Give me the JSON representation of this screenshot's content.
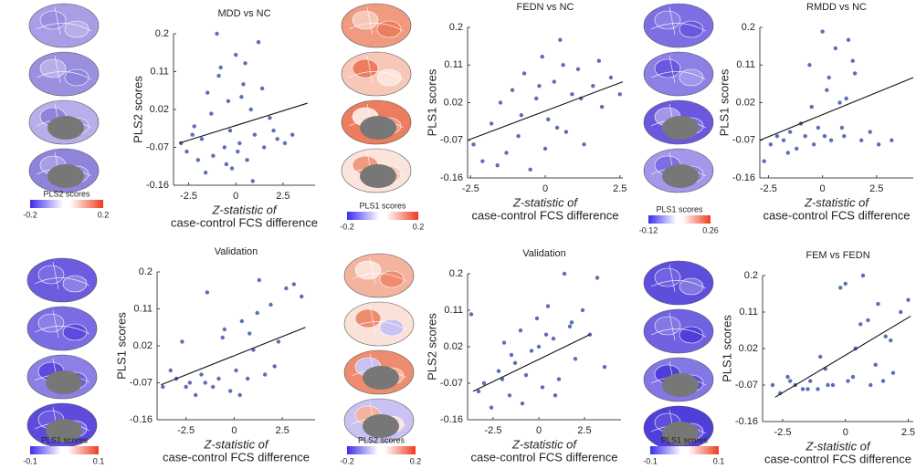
{
  "chart_data": [
    {
      "type": "scatter",
      "title": "MDD vs NC",
      "ylabel": "PLS2 scores",
      "xlabel": [
        "Z-statistic of",
        "case-control FCS difference"
      ],
      "color": "#5b6fb5",
      "xlim": [
        -3.3,
        4.2
      ],
      "xticks": [
        -2.5,
        0,
        2.5
      ],
      "ylim": [
        -0.16,
        0.2
      ],
      "yticks": [
        -0.16,
        -0.07,
        0.02,
        0.11,
        0.2
      ],
      "x": [
        -2.9,
        -2.6,
        -2.3,
        -2,
        -1.8,
        -1.5,
        -1.2,
        -1,
        -0.8,
        -0.6,
        -0.4,
        -0.2,
        0,
        0.2,
        0.4,
        0.6,
        0.8,
        1,
        1.2,
        1.5,
        1.8,
        2.2,
        2.6,
        3,
        -1.6,
        -0.9,
        -0.3,
        0.3,
        0.9,
        -2.2,
        -1.3,
        0.1,
        1.4,
        -0.5,
        0.5,
        2
      ],
      "y": [
        -0.06,
        -0.08,
        -0.04,
        -0.1,
        -0.05,
        0.06,
        -0.09,
        0.2,
        0.12,
        -0.07,
        0.04,
        -0.12,
        0.15,
        -0.06,
        0.08,
        -0.1,
        0.02,
        -0.04,
        0.18,
        -0.07,
        0,
        -0.05,
        -0.06,
        -0.04,
        -0.13,
        0.1,
        -0.03,
        0.05,
        -0.15,
        -0.02,
        0.01,
        -0.08,
        0.07,
        -0.11,
        0.13,
        -0.03
      ],
      "fit": {
        "x": [
          -3,
          3.8
        ],
        "y": [
          -0.06,
          0.035
        ]
      },
      "colorbar": {
        "label": "PLS2 scores",
        "ticks": [
          -0.2,
          0.2
        ]
      }
    },
    {
      "type": "scatter",
      "title": "FEDN vs NC",
      "ylabel": "PLS1 scores",
      "xlabel": [
        "Z-statistic of",
        "case-control FCS difference"
      ],
      "color": "#5b6fb5",
      "xlim": [
        -2.6,
        2.6
      ],
      "xticks": [
        -2.5,
        0,
        2.5
      ],
      "ylim": [
        -0.16,
        0.2
      ],
      "yticks": [
        -0.16,
        -0.07,
        0.02,
        0.11,
        0.2
      ],
      "x": [
        -2.4,
        -2.1,
        -1.8,
        -1.5,
        -1.3,
        -1.1,
        -0.9,
        -0.7,
        -0.5,
        -0.3,
        -0.1,
        0.1,
        0.3,
        0.5,
        0.7,
        0.9,
        1.1,
        1.3,
        1.6,
        1.9,
        2.2,
        2.5,
        -1.6,
        -0.8,
        0,
        0.6,
        1.2,
        -0.2,
        0.4,
        1.8
      ],
      "y": [
        -0.08,
        -0.12,
        -0.03,
        0.02,
        -0.1,
        0.05,
        -0.06,
        0.09,
        -0.14,
        0.03,
        0.13,
        -0.02,
        0.07,
        0.17,
        -0.05,
        0.04,
        0.1,
        -0.08,
        0.06,
        0.01,
        0.08,
        0.04,
        -0.13,
        -0.01,
        -0.09,
        0.11,
        0.03,
        0.06,
        -0.04,
        0.12
      ],
      "fit": {
        "x": [
          -2.6,
          2.6
        ],
        "y": [
          -0.07,
          0.07
        ]
      },
      "colorbar": {
        "label": "PLS1 scores",
        "ticks": [
          -0.2,
          0.2
        ]
      }
    },
    {
      "type": "scatter",
      "title": "RMDD vs NC",
      "ylabel": "PLS1 scores",
      "xlabel": [
        "Z-statistic of",
        "case-control FCS difference"
      ],
      "color": "#5b6fb5",
      "xlim": [
        -2.9,
        4.2
      ],
      "xticks": [
        -2.5,
        0,
        2.5
      ],
      "ylim": [
        -0.16,
        0.2
      ],
      "yticks": [
        -0.16,
        -0.07,
        0.02,
        0.11,
        0.2
      ],
      "x": [
        -2.7,
        -2.4,
        -2.1,
        -1.8,
        -1.5,
        -1.2,
        -1,
        -0.8,
        -0.6,
        -0.4,
        -0.2,
        0,
        0.2,
        0.4,
        0.6,
        0.8,
        1,
        1.2,
        1.5,
        1.8,
        2.2,
        2.6,
        3.2,
        -0.5,
        0.3,
        0.9,
        1.4,
        -1.6,
        0.1,
        1.1
      ],
      "y": [
        -0.12,
        -0.08,
        -0.06,
        -0.07,
        -0.05,
        -0.09,
        -0.03,
        -0.06,
        0.11,
        -0.08,
        -0.04,
        0.19,
        0.05,
        -0.07,
        0.15,
        0.02,
        -0.06,
        0.17,
        0.09,
        -0.07,
        -0.05,
        -0.08,
        -0.07,
        0.01,
        0.08,
        -0.04,
        0.12,
        -0.1,
        -0.06,
        0.03
      ],
      "fit": {
        "x": [
          -2.9,
          4.2
        ],
        "y": [
          -0.07,
          0.08
        ]
      },
      "colorbar": {
        "label": "PLS1 scores",
        "ticks": [
          -0.12,
          0.26
        ]
      }
    },
    {
      "type": "scatter",
      "title": "Validation",
      "ylabel": "PLS1 scores",
      "xlabel": [
        "Z-statistic of",
        "case-control FCS difference"
      ],
      "color": "#5b6fb5",
      "xlim": [
        -4,
        4.2
      ],
      "xticks": [
        -2.5,
        0,
        2.5
      ],
      "ylim": [
        -0.16,
        0.2
      ],
      "yticks": [
        -0.16,
        -0.07,
        0.02,
        0.11,
        0.2
      ],
      "x": [
        -3.7,
        -3.3,
        -3,
        -2.7,
        -2.3,
        -2,
        -1.7,
        -1.4,
        -1.1,
        -0.8,
        -0.5,
        -0.2,
        0.1,
        0.4,
        0.7,
        1,
        1.3,
        1.6,
        1.9,
        2.3,
        2.7,
        3.1,
        3.5,
        -1.5,
        -0.6,
        0.3,
        1.2,
        2.1,
        -2.5,
        0.8
      ],
      "y": [
        -0.08,
        -0.04,
        -0.06,
        0.03,
        -0.07,
        -0.1,
        -0.05,
        0.15,
        -0.08,
        -0.06,
        0.06,
        -0.09,
        -0.04,
        0.08,
        -0.06,
        0.01,
        0.18,
        -0.05,
        0.12,
        0.03,
        0.16,
        0.17,
        0.14,
        -0.07,
        0.04,
        -0.1,
        0.1,
        -0.03,
        -0.08,
        0.05
      ],
      "fit": {
        "x": [
          -3.8,
          3.7
        ],
        "y": [
          -0.075,
          0.065
        ]
      },
      "colorbar": {
        "label": "PLS1 scores",
        "ticks": [
          -0.1,
          0.1
        ]
      }
    },
    {
      "type": "scatter",
      "title": "Validation",
      "ylabel": "PLS2 scores",
      "xlabel": [
        "Z-statistic of",
        "case-control FCS difference"
      ],
      "color": "#5b6fb5",
      "xlim": [
        -3.9,
        4.5
      ],
      "xticks": [
        -2.5,
        0,
        2.5
      ],
      "ylim": [
        -0.16,
        0.2
      ],
      "yticks": [
        -0.16,
        -0.07,
        0.02,
        0.11,
        0.2
      ],
      "x": [
        -3.7,
        -3.3,
        -3,
        -2.6,
        -2.2,
        -1.9,
        -1.6,
        -1.3,
        -1,
        -0.7,
        -0.4,
        -0.1,
        0.2,
        0.5,
        0.8,
        1.1,
        1.4,
        1.7,
        2,
        2.4,
        2.8,
        3.2,
        3.6,
        -2,
        -0.9,
        0,
        0.9,
        1.8,
        -1.5,
        0.4
      ],
      "y": [
        0.1,
        -0.09,
        -0.07,
        -0.13,
        -0.04,
        0.03,
        -0.1,
        -0.02,
        0.06,
        -0.05,
        0.01,
        0.09,
        -0.08,
        0.12,
        0.04,
        -0.06,
        0.2,
        0.07,
        -0.01,
        0.11,
        0.05,
        0.19,
        -0.03,
        -0.06,
        -0.12,
        0.02,
        -0.1,
        0.08,
        0,
        0.05
      ],
      "fit": {
        "x": [
          -3.6,
          2.8
        ],
        "y": [
          -0.09,
          0.05
        ]
      },
      "colorbar": {
        "label": "PLS2 scores",
        "ticks": [
          -0.2,
          0.2
        ]
      }
    },
    {
      "type": "scatter",
      "title": "FEM vs FEDN",
      "ylabel": "PLS1 scores",
      "xlabel": [
        "Z-statistic of",
        "case-control FCS difference"
      ],
      "color": "#5b6fb5",
      "xlim": [
        -3.3,
        2.7
      ],
      "xticks": [
        -2.5,
        0,
        2.5
      ],
      "ylim": [
        -0.16,
        0.2
      ],
      "yticks": [
        -0.16,
        -0.07,
        0.02,
        0.11,
        0.2
      ],
      "x": [
        -2.9,
        -2.6,
        -2.3,
        -2,
        -1.7,
        -1.4,
        -1.1,
        -0.8,
        -0.5,
        -0.2,
        0.1,
        0.4,
        0.7,
        1,
        1.3,
        1.6,
        1.9,
        2.2,
        2.5,
        -1.5,
        -0.7,
        0,
        0.6,
        1.2,
        1.8,
        -2.2,
        -1,
        0.3,
        0.9,
        1.5
      ],
      "y": [
        -0.07,
        -0.09,
        -0.05,
        -0.07,
        -0.08,
        -0.06,
        -0.08,
        -0.03,
        -0.07,
        0.17,
        -0.06,
        0.02,
        0.2,
        -0.07,
        0.13,
        0.05,
        -0.04,
        0.11,
        0.14,
        -0.08,
        -0.07,
        0.18,
        0.08,
        -0.02,
        0.04,
        -0.06,
        0,
        -0.05,
        0.09,
        -0.06
      ],
      "fit": {
        "x": [
          -2.8,
          2.6
        ],
        "y": [
          -0.1,
          0.1
        ]
      },
      "colorbar": {
        "label": "PLS1 scores",
        "ticks": [
          -0.1,
          0.1
        ]
      }
    }
  ]
}
